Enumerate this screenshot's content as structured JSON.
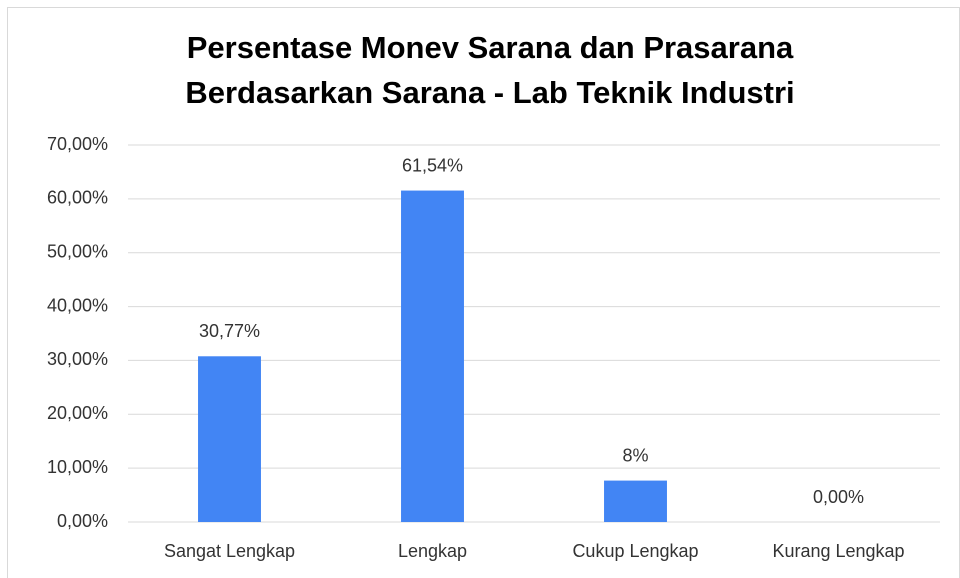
{
  "chart_data": {
    "type": "bar",
    "title": [
      "Persentase Monev Sarana dan Prasarana",
      "Berdasarkan Sarana -  Lab Teknik Industri"
    ],
    "categories": [
      "Sangat Lengkap",
      "Lengkap",
      "Cukup Lengkap",
      "Kurang Lengkap"
    ],
    "values": [
      30.77,
      61.54,
      7.69,
      0
    ],
    "value_labels": [
      "30,77%",
      "61,54%",
      "8%",
      "0,00%"
    ],
    "color": "#4285f4",
    "ylim": [
      0,
      70
    ],
    "yticks": [
      {
        "value": 0,
        "label": "0,00%"
      },
      {
        "value": 10,
        "label": "10,00%"
      },
      {
        "value": 20,
        "label": "20,00%"
      },
      {
        "value": 30,
        "label": "30,00%"
      },
      {
        "value": 40,
        "label": "40,00%"
      },
      {
        "value": 50,
        "label": "50,00%"
      },
      {
        "value": 60,
        "label": "60,00%"
      },
      {
        "value": 70,
        "label": "70,00%"
      }
    ],
    "grid": true
  }
}
